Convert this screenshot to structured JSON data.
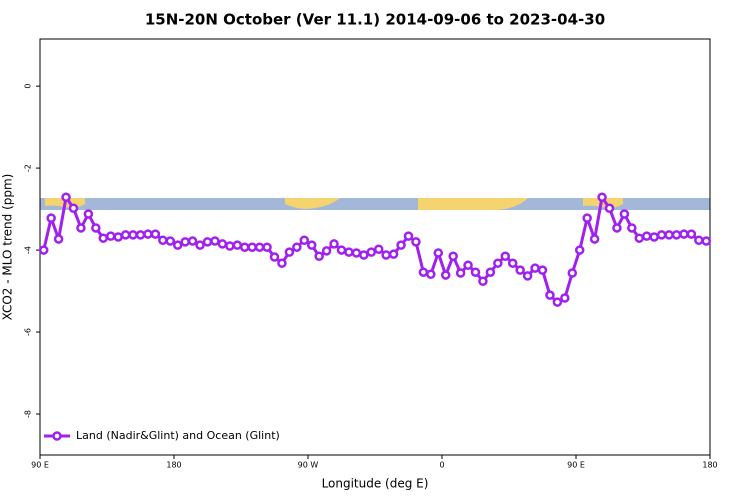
{
  "chart_data": {
    "type": "line",
    "title": "15N-20N October (Ver 11.1)   2014-09-06 to 2023-04-30",
    "x_label": "Longitude (deg E)",
    "y_label": "XCO2 - MLO trend (ppm)",
    "xlim": [
      90,
      540
    ],
    "xticks": [
      {
        "value": 90,
        "label": "90 E"
      },
      180,
      {
        "value": 270,
        "label": "90 W"
      },
      {
        "value": 360,
        "label": "0"
      },
      {
        "value": 450,
        "label": "90 E"
      },
      {
        "value": 540,
        "label": "180"
      }
    ],
    "ylim": [
      -9,
      1.15
    ],
    "yticks": [
      0,
      -2,
      -4,
      -6,
      -8
    ],
    "legend": "bottom-left",
    "series": [
      {
        "name": "Land (Nadir&Glint) and Ocean (Glint)",
        "color": "#a020f0",
        "x": [
          92.5,
          97.5,
          102.5,
          107.5,
          112.5,
          117.5,
          122.5,
          127.5,
          132.5,
          137.5,
          142.5,
          147.5,
          152.5,
          157.5,
          162.5,
          167.5,
          172.5,
          177.5,
          182.5,
          187.5,
          192.5,
          197.5,
          202.5,
          207.5,
          212.5,
          217.5,
          222.5,
          227.5,
          232.5,
          237.5,
          242.5,
          247.5,
          252.5,
          257.5,
          262.5,
          267.5,
          272.5,
          277.5,
          282.5,
          287.5,
          292.5,
          297.5,
          302.5,
          307.5,
          312.5,
          317.5,
          322.5,
          327.5,
          332.5,
          337.5,
          342.5,
          347.5,
          352.5,
          357.5,
          362.5,
          367.5,
          372.5,
          377.5,
          382.5,
          387.5,
          392.5,
          397.5,
          402.5,
          407.5,
          412.5,
          417.5,
          422.5,
          427.5,
          432.5,
          437.5,
          442.5,
          447.5,
          452.5,
          457.5,
          462.5,
          467.5,
          472.5,
          477.5,
          482.5,
          487.5,
          492.5,
          497.5,
          502.5,
          507.5,
          512.5,
          517.5,
          522.5,
          527.5,
          532.5,
          537.5
        ],
        "values": [
          -4.0,
          -3.22,
          -3.73,
          -2.71,
          -2.98,
          -3.46,
          -3.12,
          -3.46,
          -3.71,
          -3.66,
          -3.68,
          -3.63,
          -3.63,
          -3.63,
          -3.61,
          -3.61,
          -3.76,
          -3.78,
          -3.88,
          -3.8,
          -3.78,
          -3.88,
          -3.8,
          -3.78,
          -3.85,
          -3.9,
          -3.88,
          -3.93,
          -3.93,
          -3.93,
          -3.93,
          -4.17,
          -4.32,
          -4.05,
          -3.93,
          -3.76,
          -3.88,
          -4.15,
          -4.02,
          -3.85,
          -4.0,
          -4.05,
          -4.07,
          -4.12,
          -4.05,
          -3.98,
          -4.12,
          -4.1,
          -3.88,
          -3.66,
          -3.8,
          -4.54,
          -4.59,
          -4.07,
          -4.61,
          -4.15,
          -4.56,
          -4.37,
          -4.54,
          -4.76,
          -4.54,
          -4.32,
          -4.15,
          -4.32,
          -4.49,
          -4.63,
          -4.44,
          -4.49,
          -5.1,
          -5.27,
          -5.17,
          -4.56,
          -4.0,
          -3.22,
          -3.73,
          -2.71,
          -2.98,
          -3.46,
          -3.12,
          -3.46,
          -3.71,
          -3.66,
          -3.68,
          -3.63,
          -3.63,
          -3.63,
          -3.61,
          -3.61,
          -3.76,
          -3.78
        ]
      }
    ]
  }
}
